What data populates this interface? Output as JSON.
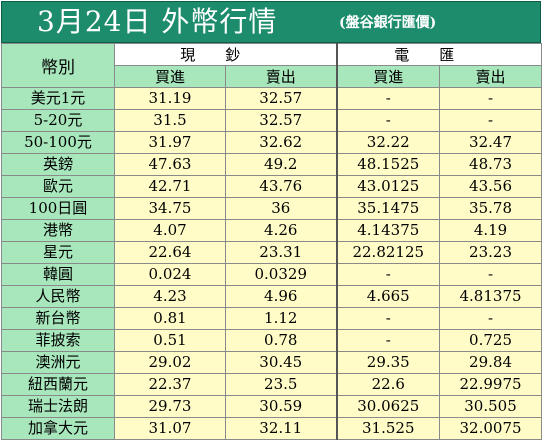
{
  "header": {
    "title": "3月24日 外幣行情",
    "subtitle": "(盤谷銀行匯價)"
  },
  "table": {
    "currency_header": "幣別",
    "cash_header": "現鈔",
    "wire_header": "電匯",
    "buy_label": "買進",
    "sell_label": "賣出",
    "rows": [
      {
        "currency": "美元1元",
        "cash_buy": "31.19",
        "cash_sell": "32.57",
        "wire_buy": "-",
        "wire_sell": "-"
      },
      {
        "currency": "5-20元",
        "cash_buy": "31.5",
        "cash_sell": "32.57",
        "wire_buy": "-",
        "wire_sell": "-"
      },
      {
        "currency": "50-100元",
        "cash_buy": "31.97",
        "cash_sell": "32.62",
        "wire_buy": "32.22",
        "wire_sell": "32.47"
      },
      {
        "currency": "英鎊",
        "cash_buy": "47.63",
        "cash_sell": "49.2",
        "wire_buy": "48.1525",
        "wire_sell": "48.73"
      },
      {
        "currency": "歐元",
        "cash_buy": "42.71",
        "cash_sell": "43.76",
        "wire_buy": "43.0125",
        "wire_sell": "43.56"
      },
      {
        "currency": "100日圓",
        "cash_buy": "34.75",
        "cash_sell": "36",
        "wire_buy": "35.1475",
        "wire_sell": "35.78"
      },
      {
        "currency": "港幣",
        "cash_buy": "4.07",
        "cash_sell": "4.26",
        "wire_buy": "4.14375",
        "wire_sell": "4.19"
      },
      {
        "currency": "星元",
        "cash_buy": "22.64",
        "cash_sell": "23.31",
        "wire_buy": "22.82125",
        "wire_sell": "23.23"
      },
      {
        "currency": "韓圓",
        "cash_buy": "0.024",
        "cash_sell": "0.0329",
        "wire_buy": "-",
        "wire_sell": "-"
      },
      {
        "currency": "人民幣",
        "cash_buy": "4.23",
        "cash_sell": "4.96",
        "wire_buy": "4.665",
        "wire_sell": "4.81375"
      },
      {
        "currency": "新台幣",
        "cash_buy": "0.81",
        "cash_sell": "1.12",
        "wire_buy": "-",
        "wire_sell": "-"
      },
      {
        "currency": "菲披索",
        "cash_buy": "0.51",
        "cash_sell": "0.78",
        "wire_buy": "-",
        "wire_sell": "0.725"
      },
      {
        "currency": "澳洲元",
        "cash_buy": "29.02",
        "cash_sell": "30.45",
        "wire_buy": "29.35",
        "wire_sell": "29.84"
      },
      {
        "currency": "紐西蘭元",
        "cash_buy": "22.37",
        "cash_sell": "23.5",
        "wire_buy": "22.6",
        "wire_sell": "22.9975"
      },
      {
        "currency": "瑞士法朗",
        "cash_buy": "29.73",
        "cash_sell": "30.59",
        "wire_buy": "30.0625",
        "wire_sell": "30.505"
      },
      {
        "currency": "加拿大元",
        "cash_buy": "31.07",
        "cash_sell": "32.11",
        "wire_buy": "31.525",
        "wire_sell": "32.0075"
      }
    ]
  },
  "colors": {
    "title_bg": "#1c8c6c",
    "label_bg": "#a8e6bc",
    "value_bg": "#fffcc8"
  }
}
